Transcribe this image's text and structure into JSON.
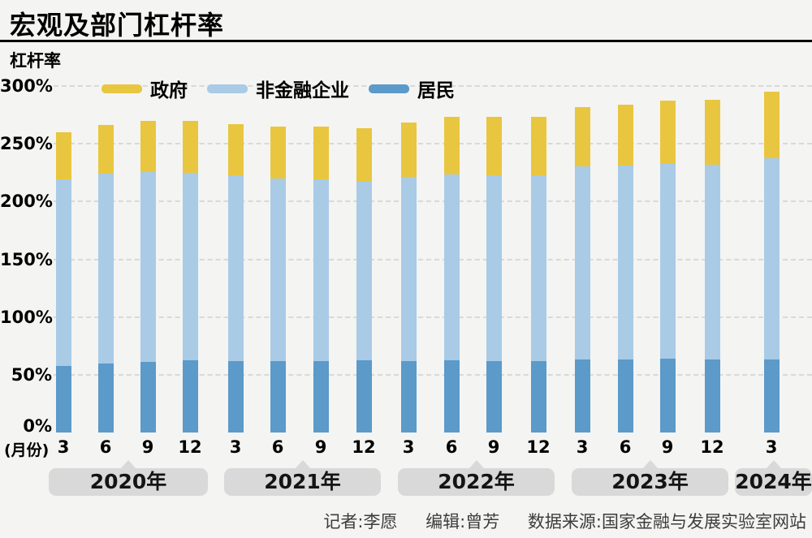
{
  "title": "宏观及部门杠杆率",
  "axis": {
    "ylabel": "杠杆率",
    "unit_label": "(月份)",
    "tick_labels": [
      "300%",
      "250%",
      "200%",
      "150%",
      "100%",
      "50%",
      "0%"
    ],
    "tick_values": [
      300,
      250,
      200,
      150,
      100,
      50,
      0
    ]
  },
  "legend": [
    {
      "id": "government",
      "label": "政府",
      "color": "#e9c63f"
    },
    {
      "id": "nfc",
      "label": "非金融企业",
      "color": "#a9cbe6"
    },
    {
      "id": "residents",
      "label": "居民",
      "color": "#5b9ac9"
    }
  ],
  "chart_data": {
    "type": "bar",
    "stacked": true,
    "title": "宏观及部门杠杆率",
    "ylabel": "杠杆率",
    "ylim": [
      0,
      300
    ],
    "grid": true,
    "legend_position": "top",
    "x": [
      "3",
      "6",
      "9",
      "12",
      "3",
      "6",
      "9",
      "12",
      "3",
      "6",
      "9",
      "12",
      "3",
      "6",
      "9",
      "12",
      "3"
    ],
    "year_groups": [
      {
        "label": "2020年",
        "count": 4
      },
      {
        "label": "2021年",
        "count": 4
      },
      {
        "label": "2022年",
        "count": 4
      },
      {
        "label": "2023年",
        "count": 4
      },
      {
        "label": "2024年",
        "count": 1
      }
    ],
    "series": [
      {
        "id": "residents",
        "name": "居民",
        "color": "#5b9ac9",
        "values": [
          57.7,
          59.7,
          61.4,
          62.2,
          62.1,
          62.0,
          62.1,
          62.2,
          62.1,
          62.3,
          62.1,
          61.9,
          63.3,
          63.5,
          63.8,
          63.5,
          63.5
        ]
      },
      {
        "id": "nfc",
        "name": "非金融企业",
        "color": "#a9cbe6",
        "values": [
          161.4,
          164.4,
          164.0,
          162.3,
          160.3,
          158.2,
          157.2,
          154.8,
          158.9,
          161.3,
          160.9,
          160.9,
          167.0,
          167.8,
          168.8,
          168.4,
          174.1
        ]
      },
      {
        "id": "government",
        "name": "政府",
        "color": "#e9c63f",
        "values": [
          41.0,
          42.3,
          44.7,
          45.6,
          44.5,
          44.6,
          45.5,
          46.8,
          47.5,
          49.5,
          50.1,
          50.4,
          51.5,
          52.6,
          55.0,
          56.1,
          57.3
        ]
      }
    ],
    "totals": [
      260.1,
      266.4,
      270.1,
      270.1,
      266.9,
      264.8,
      264.8,
      263.8,
      268.5,
      273.1,
      273.1,
      273.2,
      281.8,
      283.9,
      287.6,
      288.0,
      294.9
    ]
  },
  "footer": {
    "reporter": "记者:李愿",
    "editor": "编辑:曾芳",
    "source": "数据来源:国家金融与发展实验室网站"
  }
}
